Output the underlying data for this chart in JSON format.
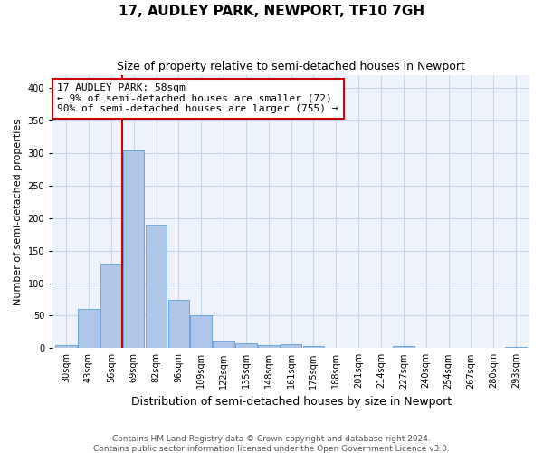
{
  "title": "17, AUDLEY PARK, NEWPORT, TF10 7GH",
  "subtitle": "Size of property relative to semi-detached houses in Newport",
  "xlabel": "Distribution of semi-detached houses by size in Newport",
  "ylabel": "Number of semi-detached properties",
  "footer_line1": "Contains HM Land Registry data © Crown copyright and database right 2024.",
  "footer_line2": "Contains public sector information licensed under the Open Government Licence v3.0.",
  "annotation_title": "17 AUDLEY PARK: 58sqm",
  "annotation_line2": "← 9% of semi-detached houses are smaller (72)",
  "annotation_line3": "90% of semi-detached houses are larger (755) →",
  "bar_labels": [
    "30sqm",
    "43sqm",
    "56sqm",
    "69sqm",
    "82sqm",
    "96sqm",
    "109sqm",
    "122sqm",
    "135sqm",
    "148sqm",
    "161sqm",
    "175sqm",
    "188sqm",
    "201sqm",
    "214sqm",
    "227sqm",
    "240sqm",
    "254sqm",
    "267sqm",
    "280sqm",
    "293sqm"
  ],
  "bar_values": [
    5,
    60,
    130,
    305,
    190,
    75,
    50,
    12,
    7,
    5,
    6,
    3,
    1,
    0,
    0,
    3,
    1,
    0,
    0,
    0,
    2
  ],
  "bar_color": "#aec6e8",
  "bar_edge_color": "#5a9fd4",
  "vline_x_index": 2.5,
  "vline_color": "#cc0000",
  "ylim": [
    0,
    420
  ],
  "yticks": [
    0,
    50,
    100,
    150,
    200,
    250,
    300,
    350,
    400
  ],
  "annotation_box_color": "#cc0000",
  "background_color": "#eef2fb",
  "grid_color": "#c8d4e8",
  "fig_width": 6.0,
  "fig_height": 5.0,
  "title_fontsize": 11,
  "subtitle_fontsize": 9,
  "ylabel_fontsize": 8,
  "xlabel_fontsize": 9,
  "tick_fontsize": 7,
  "annotation_fontsize": 8,
  "footer_fontsize": 6.5
}
